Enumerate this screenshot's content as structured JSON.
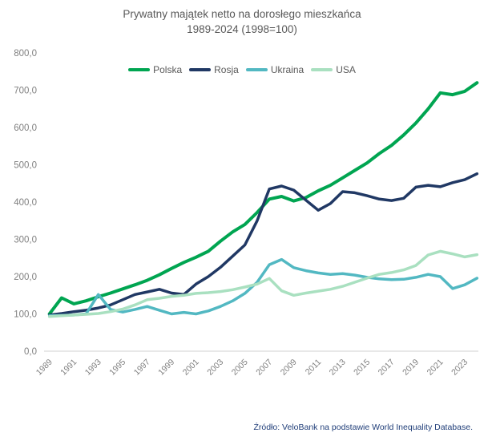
{
  "source_note": "Źródło: VeloBank na podstawie World Inequality Database.",
  "colors": {
    "title_text": "#595959",
    "axis_labels": "#7f7f7f",
    "axis_line": "#d9d9d9",
    "source_text": "#1f3d78"
  },
  "chart_data": {
    "type": "line",
    "title": "Prywatny majątek netto na dorosłego mieszkańca",
    "subtitle": "1989-2024 (1998=100)",
    "x": [
      1989,
      1990,
      1991,
      1992,
      1993,
      1994,
      1995,
      1996,
      1997,
      1998,
      1999,
      2000,
      2001,
      2002,
      2003,
      2004,
      2005,
      2006,
      2007,
      2008,
      2009,
      2010,
      2011,
      2012,
      2013,
      2014,
      2015,
      2016,
      2017,
      2018,
      2019,
      2020,
      2021,
      2022,
      2023,
      2024
    ],
    "x_tick_labels": [
      "1989",
      "1991",
      "1993",
      "1995",
      "1997",
      "1999",
      "2001",
      "2003",
      "2005",
      "2007",
      "2009",
      "2011",
      "2013",
      "2015",
      "2017",
      "2019",
      "2021",
      "2023"
    ],
    "ylim": [
      0,
      800
    ],
    "y_tick_step": 100,
    "y_tick_labels": [
      "0,0",
      "100,0",
      "200,0",
      "300,0",
      "400,0",
      "500,0",
      "600,0",
      "700,0",
      "800,0"
    ],
    "grid": false,
    "legend_position": "top",
    "series": [
      {
        "name": "Polska",
        "color": "#00a551",
        "width": 4,
        "values": [
          100,
          143,
          127,
          135,
          146,
          156,
          167,
          178,
          190,
          205,
          222,
          238,
          252,
          268,
          295,
          320,
          340,
          372,
          408,
          415,
          403,
          412,
          430,
          445,
          465,
          485,
          505,
          530,
          552,
          580,
          612,
          650,
          693,
          688,
          697,
          720
        ]
      },
      {
        "name": "Rosja",
        "color": "#203864",
        "width": 3.5,
        "values": [
          97,
          101,
          106,
          110,
          116,
          124,
          138,
          152,
          159,
          166,
          156,
          152,
          180,
          200,
          225,
          255,
          285,
          350,
          435,
          443,
          432,
          405,
          378,
          396,
          428,
          425,
          417,
          408,
          404,
          410,
          440,
          445,
          441,
          452,
          460,
          476
        ]
      },
      {
        "name": "Ukraina",
        "color": "#52b8c2",
        "width": 3.5,
        "values": [
          95,
          96,
          97,
          100,
          152,
          112,
          105,
          112,
          120,
          110,
          100,
          104,
          100,
          108,
          120,
          135,
          155,
          185,
          232,
          246,
          224,
          216,
          210,
          206,
          208,
          204,
          198,
          194,
          192,
          193,
          198,
          206,
          200,
          168,
          178,
          196
        ]
      },
      {
        "name": "USA",
        "color": "#a9e0c0",
        "width": 3.5,
        "values": [
          93,
          95,
          97,
          99,
          101,
          106,
          113,
          124,
          138,
          142,
          147,
          150,
          155,
          157,
          160,
          165,
          172,
          180,
          195,
          162,
          150,
          156,
          161,
          166,
          174,
          185,
          196,
          206,
          211,
          218,
          230,
          258,
          268,
          261,
          253,
          259
        ]
      }
    ]
  }
}
